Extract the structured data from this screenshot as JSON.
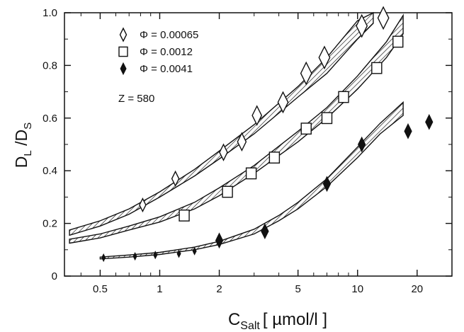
{
  "chart_data": {
    "type": "scatter",
    "title": "",
    "xscale": "log",
    "xlim": [
      0.33,
      30
    ],
    "ylim": [
      0,
      1.0
    ],
    "grid": false,
    "xlabel": {
      "main": "C",
      "sub": "Salt",
      "unit": "[ µmol/l ]"
    },
    "ylabel": {
      "a": "D",
      "a_sub": "L",
      "sep": " /D",
      "b_sub": "S"
    },
    "x_ticks": [
      0.5,
      1,
      2,
      5,
      10,
      20
    ],
    "x_tick_labels": [
      "0.5",
      "1",
      "2",
      "5",
      "10",
      "20"
    ],
    "y_ticks": [
      0,
      0.2,
      0.4,
      0.6,
      0.8,
      1.0
    ],
    "y_tick_labels": [
      "0",
      "0.2",
      "0.4",
      "0.6",
      "0.8",
      "1.0"
    ],
    "legend_position": "top-left",
    "annotation": "Z = 580",
    "series": [
      {
        "name": "Φ = 0.00065",
        "marker": "diamond-open",
        "points": [
          [
            0.82,
            0.27
          ],
          [
            1.2,
            0.37
          ],
          [
            2.1,
            0.47
          ],
          [
            2.6,
            0.51
          ],
          [
            3.1,
            0.61
          ],
          [
            4.2,
            0.66
          ],
          [
            5.5,
            0.77
          ],
          [
            6.8,
            0.83
          ],
          [
            10.5,
            0.95
          ],
          [
            13.5,
            0.98
          ]
        ],
        "band": [
          [
            0.35,
            0.155,
            0.175
          ],
          [
            0.5,
            0.19,
            0.21
          ],
          [
            0.7,
            0.235,
            0.255
          ],
          [
            1.0,
            0.3,
            0.32
          ],
          [
            1.5,
            0.38,
            0.405
          ],
          [
            2.0,
            0.445,
            0.475
          ],
          [
            3.0,
            0.54,
            0.575
          ],
          [
            5.0,
            0.68,
            0.72
          ],
          [
            7.0,
            0.77,
            0.83
          ],
          [
            10.0,
            0.9,
            0.97
          ],
          [
            12.0,
            0.96,
            1.0
          ]
        ]
      },
      {
        "name": "Φ = 0.0012",
        "marker": "square-open",
        "points": [
          [
            1.33,
            0.23
          ],
          [
            2.2,
            0.32
          ],
          [
            2.9,
            0.39
          ],
          [
            3.8,
            0.45
          ],
          [
            5.5,
            0.56
          ],
          [
            7.0,
            0.6
          ],
          [
            8.5,
            0.68
          ],
          [
            12.5,
            0.79
          ],
          [
            16.0,
            0.89
          ]
        ],
        "band": [
          [
            0.35,
            0.125,
            0.14
          ],
          [
            0.5,
            0.145,
            0.16
          ],
          [
            0.7,
            0.175,
            0.19
          ],
          [
            1.0,
            0.205,
            0.225
          ],
          [
            1.5,
            0.255,
            0.28
          ],
          [
            2.0,
            0.305,
            0.335
          ],
          [
            3.0,
            0.39,
            0.42
          ],
          [
            5.0,
            0.51,
            0.55
          ],
          [
            7.0,
            0.6,
            0.64
          ],
          [
            10.0,
            0.71,
            0.76
          ],
          [
            14.0,
            0.83,
            0.89
          ],
          [
            17.0,
            0.92,
            0.99
          ]
        ]
      },
      {
        "name": "Φ = 0.0041",
        "marker": "diamond-filled",
        "points": [
          [
            0.52,
            0.07
          ],
          [
            0.75,
            0.075
          ],
          [
            0.95,
            0.08
          ],
          [
            1.25,
            0.085
          ],
          [
            1.5,
            0.095
          ],
          [
            2.0,
            0.135
          ],
          [
            3.4,
            0.17
          ],
          [
            7.0,
            0.35
          ],
          [
            10.5,
            0.5
          ],
          [
            18.0,
            0.55
          ],
          [
            23.0,
            0.585
          ]
        ],
        "band": [
          [
            0.5,
            0.065,
            0.072
          ],
          [
            0.7,
            0.072,
            0.08
          ],
          [
            1.0,
            0.082,
            0.09
          ],
          [
            1.5,
            0.1,
            0.11
          ],
          [
            2.0,
            0.12,
            0.132
          ],
          [
            3.0,
            0.16,
            0.178
          ],
          [
            4.0,
            0.21,
            0.23
          ],
          [
            5.0,
            0.255,
            0.28
          ],
          [
            7.0,
            0.34,
            0.37
          ],
          [
            10.0,
            0.45,
            0.49
          ],
          [
            13.0,
            0.54,
            0.58
          ],
          [
            17.0,
            0.61,
            0.66
          ]
        ]
      }
    ]
  }
}
